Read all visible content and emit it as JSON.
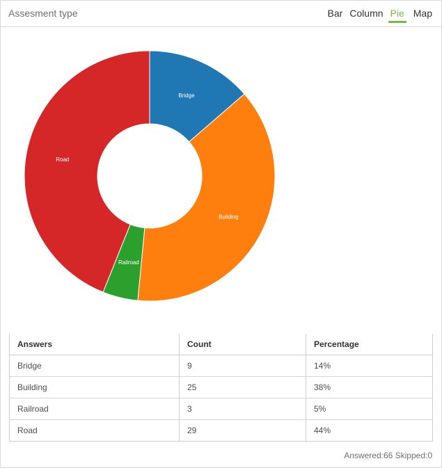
{
  "header": {
    "title": "Assesment type",
    "tabs": [
      {
        "label": "Bar",
        "active": false
      },
      {
        "label": "Column",
        "active": false
      },
      {
        "label": "Pie",
        "active": true
      },
      {
        "label": "Map",
        "active": false
      }
    ]
  },
  "chart_data": {
    "type": "pie",
    "donut": true,
    "categories": [
      "Bridge",
      "Building",
      "Railroad",
      "Road"
    ],
    "values": [
      9,
      25,
      3,
      29
    ],
    "colors": [
      "#1f77b4",
      "#ff7f0e",
      "#2ca02c",
      "#d62728"
    ],
    "legend": "none"
  },
  "table": {
    "headers": [
      "Answers",
      "Count",
      "Percentage"
    ],
    "rows": [
      [
        "Bridge",
        "9",
        "14%"
      ],
      [
        "Building",
        "25",
        "38%"
      ],
      [
        "Railroad",
        "3",
        "5%"
      ],
      [
        "Road",
        "29",
        "44%"
      ]
    ]
  },
  "footer": {
    "summary": "Answered:66 Skipped:0"
  }
}
